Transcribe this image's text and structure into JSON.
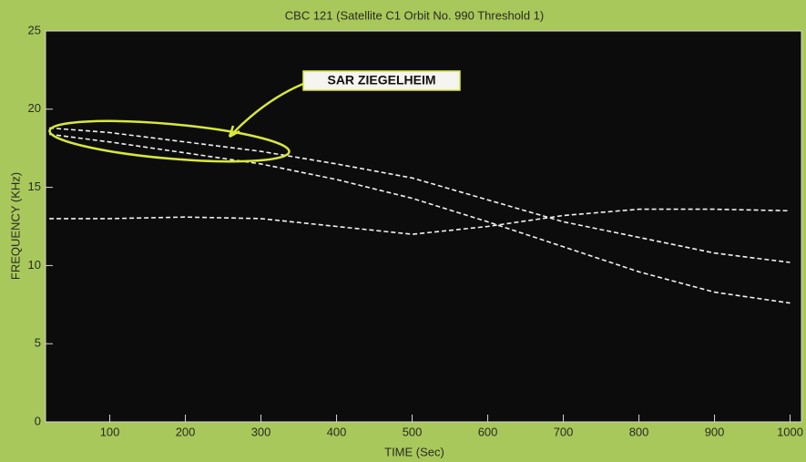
{
  "chart_data": {
    "type": "line",
    "title": "CBC 121 (Satellite C1 Orbit No. 990 Threshold 1)",
    "x_label": "TIME (Sec)",
    "y_label": "FREQUENCY (KHz)",
    "annotation": "SAR ZIEGELHEIM",
    "x": [
      20,
      100,
      200,
      300,
      400,
      500,
      600,
      700,
      800,
      900,
      1000
    ],
    "series": [
      {
        "color": "#f2f2f2",
        "values": [
          18.8,
          18.5,
          17.9,
          17.3,
          16.5,
          15.6,
          14.2,
          12.8,
          11.8,
          10.8,
          10.2
        ]
      },
      {
        "color": "#f2f2f2",
        "values": [
          18.4,
          17.9,
          17.2,
          16.5,
          15.5,
          14.3,
          12.8,
          11.2,
          9.6,
          8.3,
          7.6
        ]
      },
      {
        "color": "#f2f2f2",
        "values": [
          13.0,
          13.0,
          13.1,
          13.0,
          12.5,
          12.0,
          12.5,
          13.2,
          13.6,
          13.6,
          13.5
        ]
      }
    ],
    "xlim": [
      15,
      1015
    ],
    "ylim": [
      0,
      25
    ],
    "xticks": [
      100,
      200,
      300,
      400,
      500,
      600,
      700,
      800,
      900,
      1000
    ],
    "yticks": [
      0,
      5,
      10,
      15,
      20,
      25
    ],
    "grid": false
  }
}
